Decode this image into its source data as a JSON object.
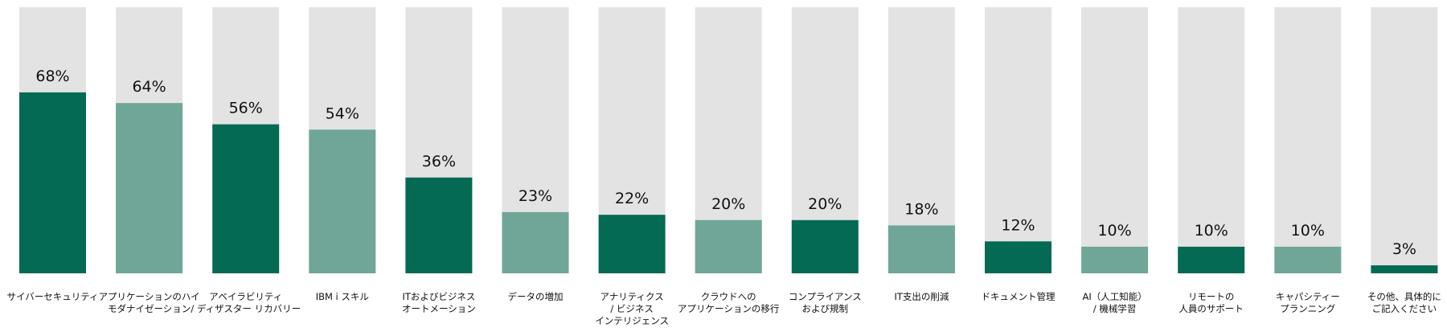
{
  "chart_data": {
    "type": "bar",
    "title": "",
    "xlabel": "",
    "ylabel": "",
    "ylim": [
      0,
      100
    ],
    "grid": false,
    "legend": "none",
    "value_suffix": "%",
    "categories": [
      "サイバーセキュリティ",
      "アプリケーションのハイ\nモダナイゼーション",
      "アベイラビリティ\n/ ディザスター リカバリー",
      "IBM i スキル",
      "ITおよびビジネス\nオートメーション",
      "データの増加",
      "アナリティクス\n/ ビジネス\nインテリジェンス",
      "クラウドへの\nアプリケーションの移行",
      "コンプライアンス\nおよび規制",
      "IT支出の削減",
      "ドキュメント管理",
      "AI（人工知能）\n/ 機械学習",
      "リモートの\n人員のサポート",
      "キャパシティー\nプランニング",
      "その他、具体的に\nご記入ください"
    ],
    "values": [
      68,
      64,
      56,
      54,
      36,
      23,
      22,
      20,
      20,
      18,
      12,
      10,
      10,
      10,
      3
    ],
    "colors": {
      "dark": "#046a53",
      "light": "#6fa698",
      "track": "#e3e3e3"
    },
    "bar_color_pattern": [
      "dark",
      "light"
    ]
  }
}
